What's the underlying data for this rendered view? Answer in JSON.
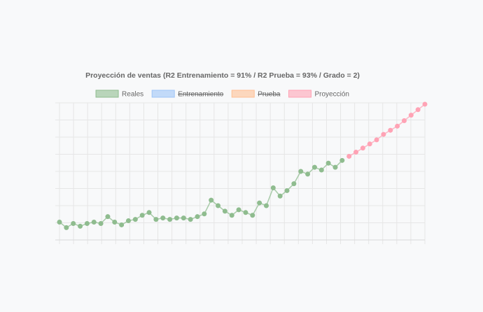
{
  "chart_data": {
    "type": "line",
    "title": "Proyección de ventas (R2 Entrenamiento = 91% / R2 Prueba = 93% / Grado = 2)",
    "legend": [
      {
        "name": "Reales",
        "color": "#8fbc8f",
        "hidden": false
      },
      {
        "name": "Entrenamiento",
        "color": "#9fc5f8",
        "hidden": true
      },
      {
        "name": "Prueba",
        "color": "#ffbf94",
        "hidden": true
      },
      {
        "name": "Proyección",
        "color": "#ffa3b5",
        "hidden": false
      }
    ],
    "legend_position": "top",
    "grid": true,
    "y_ticks_shown": false,
    "x_ticks_shown": false,
    "x_count": 54,
    "ylim": [
      0,
      100
    ],
    "series": [
      {
        "name": "Reales",
        "color": "#8fbc8f",
        "x": [
          0,
          1,
          2,
          3,
          4,
          5,
          6,
          7,
          8,
          9,
          10,
          11,
          12,
          13,
          14,
          15,
          16,
          17,
          18,
          19,
          20,
          21,
          22,
          23,
          24,
          25,
          26,
          27,
          28,
          29,
          30,
          31,
          32,
          33,
          34,
          35,
          36,
          37,
          38,
          39,
          40,
          41
        ],
        "values": [
          13,
          9,
          12,
          10,
          12,
          13,
          12,
          17,
          13,
          11,
          14,
          15,
          18,
          20,
          15,
          16,
          15,
          16,
          16,
          15,
          17,
          19,
          29,
          25,
          21,
          18,
          22,
          20,
          18,
          27,
          25,
          38,
          32,
          36,
          41,
          50,
          48,
          53,
          51,
          56,
          53,
          58
        ]
      },
      {
        "name": "Proyección",
        "color": "#ffa3b5",
        "x": [
          42,
          43,
          44,
          45,
          46,
          47,
          48,
          49,
          50,
          51,
          52,
          53
        ],
        "values": [
          61,
          64,
          67,
          70,
          73,
          77,
          80,
          83,
          87,
          91,
          95,
          99
        ]
      }
    ]
  }
}
